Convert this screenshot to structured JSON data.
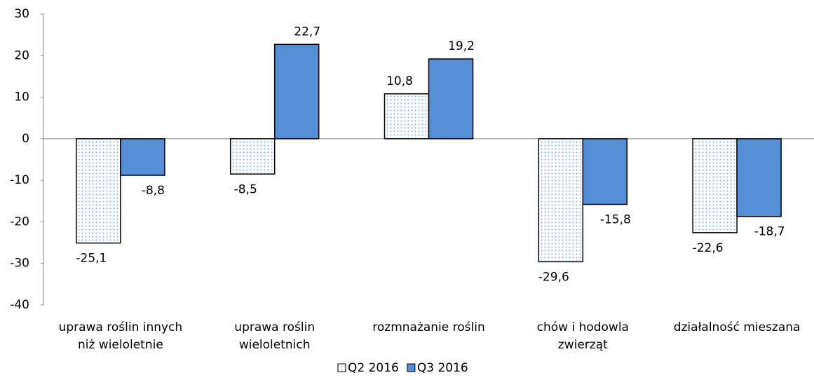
{
  "chart_data": {
    "type": "bar",
    "categories": [
      "uprawa roślin innych\nniż wieloletnie",
      "uprawa roślin\nwieloletnich",
      "rozmnażanie roślin",
      "chów i hodowla\nzwierząt",
      "działalność mieszana"
    ],
    "series": [
      {
        "name": "Q2 2016",
        "color": "#7fa7dc",
        "pattern": "dots",
        "values": [
          -25.1,
          -8.5,
          10.8,
          -29.6,
          -22.6
        ],
        "value_labels": [
          "-25,1",
          "-8,5",
          "10,8",
          "-29,6",
          "-22,6"
        ]
      },
      {
        "name": "Q3 2016",
        "color": "#558ed5",
        "values": [
          -8.8,
          22.7,
          19.2,
          -15.8,
          -18.7
        ],
        "value_labels": [
          "-8,8",
          "22,7",
          "19,2",
          "-15,8",
          "-18,7"
        ]
      }
    ],
    "ylim": [
      -40,
      30
    ],
    "yticks": [
      -40,
      -30,
      -20,
      -10,
      0,
      10,
      20,
      30
    ],
    "grid": false,
    "legend": "bottom"
  }
}
